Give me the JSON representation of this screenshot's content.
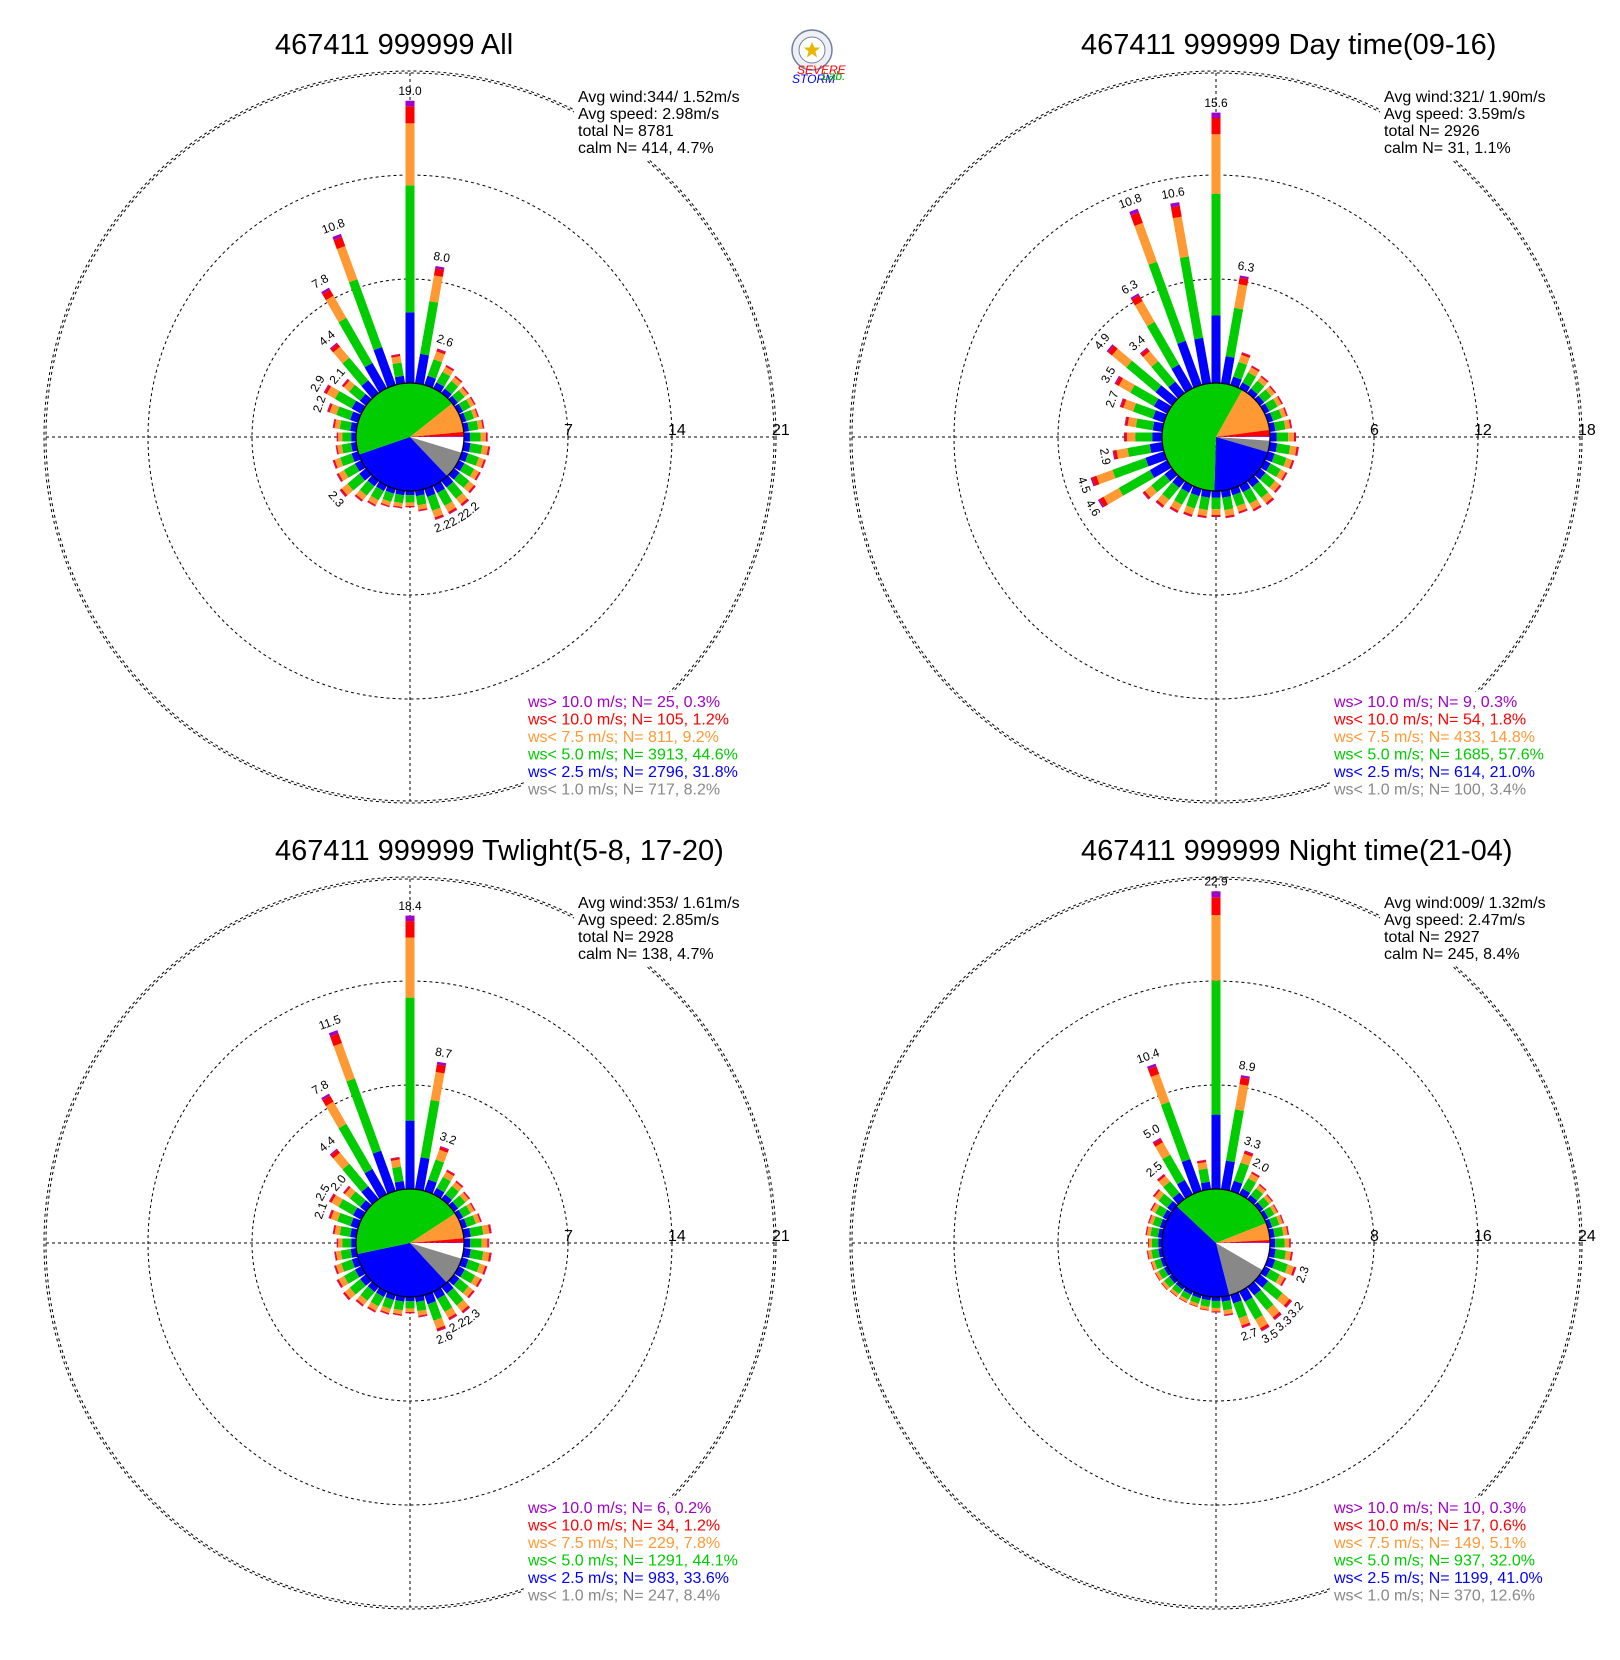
{
  "logo": {
    "word1": "SEVERE",
    "word2": "STORM",
    "word3": "Lab.",
    "colors": [
      "#ff0000",
      "#0000ff",
      "#00aa00"
    ]
  },
  "colors": {
    "gt10": "#a000c8",
    "lt10": "#ff0000",
    "lt7_5": "#ff9933",
    "lt5": "#00cc00",
    "lt2_5": "#0000ff",
    "lt1": "#888888",
    "calm": "#ffffff"
  },
  "chart_data": [
    {
      "type": "windrose",
      "title": "467411 999999 All",
      "rings": [
        7,
        14,
        21
      ],
      "stats": [
        "Avg wind:344/ 1.52m/s",
        "Avg speed: 2.98m/s",
        "total N=        8781",
        "calm N=    414,   4.7%"
      ],
      "legend": [
        {
          "label": "ws> 10.0 m/s; N=    25,  0.3%",
          "color": "#a000c8"
        },
        {
          "label": "ws< 10.0 m/s; N=   105,  1.2%",
          "color": "#ff0000"
        },
        {
          "label": "ws<  7.5 m/s; N=   811,  9.2%",
          "color": "#ff9933"
        },
        {
          "label": "ws<  5.0 m/s; N=  3913, 44.6%",
          "color": "#00cc00"
        },
        {
          "label": "ws<  2.5 m/s; N=  2796, 31.8%",
          "color": "#0000ff"
        },
        {
          "label": "ws<  1.0 m/s; N=   717,  8.2%",
          "color": "#888888"
        }
      ],
      "pie": [
        4.7,
        8.2,
        31.8,
        44.6,
        9.2,
        1.2,
        0.3
      ],
      "directions": [
        {
          "dir": 0,
          "value": 19.0,
          "label": "19.0"
        },
        {
          "dir": 10,
          "value": 8.0,
          "label": "8.0"
        },
        {
          "dir": 20,
          "value": 2.6,
          "label": "2.6"
        },
        {
          "dir": 30,
          "value": 1.8
        },
        {
          "dir": 40,
          "value": 1.5
        },
        {
          "dir": 50,
          "value": 1.3
        },
        {
          "dir": 60,
          "value": 1.3
        },
        {
          "dir": 70,
          "value": 1.2
        },
        {
          "dir": 80,
          "value": 1.4
        },
        {
          "dir": 90,
          "value": 1.6
        },
        {
          "dir": 100,
          "value": 1.8
        },
        {
          "dir": 110,
          "value": 1.7
        },
        {
          "dir": 120,
          "value": 1.7
        },
        {
          "dir": 130,
          "value": 1.9
        },
        {
          "dir": 140,
          "value": 2.2,
          "label": "2.2"
        },
        {
          "dir": 150,
          "value": 2.2,
          "label": "2.2"
        },
        {
          "dir": 160,
          "value": 2.2,
          "label": "2.2"
        },
        {
          "dir": 170,
          "value": 1.4
        },
        {
          "dir": 180,
          "value": 1.1
        },
        {
          "dir": 190,
          "value": 1.2
        },
        {
          "dir": 200,
          "value": 1.3
        },
        {
          "dir": 210,
          "value": 1.6
        },
        {
          "dir": 220,
          "value": 1.8
        },
        {
          "dir": 230,
          "value": 2.3,
          "label": "2.3"
        },
        {
          "dir": 240,
          "value": 1.9
        },
        {
          "dir": 250,
          "value": 1.8
        },
        {
          "dir": 260,
          "value": 1.4
        },
        {
          "dir": 270,
          "value": 1.3
        },
        {
          "dir": 280,
          "value": 1.6
        },
        {
          "dir": 290,
          "value": 2.2,
          "label": "2.2"
        },
        {
          "dir": 300,
          "value": 2.9,
          "label": "2.9"
        },
        {
          "dir": 310,
          "value": 2.1,
          "label": "2.1"
        },
        {
          "dir": 320,
          "value": 4.4,
          "label": "4.4"
        },
        {
          "dir": 330,
          "value": 7.8,
          "label": "7.8"
        },
        {
          "dir": 340,
          "value": 10.8,
          "label": "10.8"
        },
        {
          "dir": 350,
          "value": 2.0
        }
      ]
    },
    {
      "type": "windrose",
      "title": "467411 999999 Day time(09-16)",
      "rings": [
        6,
        12,
        18
      ],
      "stats": [
        "Avg wind:321/ 1.90m/s",
        "Avg speed: 3.59m/s",
        "total N=        2926",
        "calm N=     31,   1.1%"
      ],
      "legend": [
        {
          "label": "ws> 10.0 m/s; N=     9,  0.3%",
          "color": "#a000c8"
        },
        {
          "label": "ws< 10.0 m/s; N=    54,  1.8%",
          "color": "#ff0000"
        },
        {
          "label": "ws<  7.5 m/s; N=   433, 14.8%",
          "color": "#ff9933"
        },
        {
          "label": "ws<  5.0 m/s; N=  1685, 57.6%",
          "color": "#00cc00"
        },
        {
          "label": "ws<  2.5 m/s; N=   614, 21.0%",
          "color": "#0000ff"
        },
        {
          "label": "ws<  1.0 m/s; N=   100,  3.4%",
          "color": "#888888"
        }
      ],
      "pie": [
        1.1,
        3.4,
        21.0,
        57.6,
        14.8,
        1.8,
        0.3
      ],
      "directions": [
        {
          "dir": 0,
          "value": 15.6,
          "label": "15.6"
        },
        {
          "dir": 10,
          "value": 6.3,
          "label": "6.3"
        },
        {
          "dir": 20,
          "value": 2.0
        },
        {
          "dir": 30,
          "value": 1.5
        },
        {
          "dir": 40,
          "value": 1.3
        },
        {
          "dir": 50,
          "value": 1.2
        },
        {
          "dir": 60,
          "value": 1.2
        },
        {
          "dir": 70,
          "value": 1.2
        },
        {
          "dir": 80,
          "value": 1.3
        },
        {
          "dir": 90,
          "value": 1.5
        },
        {
          "dir": 100,
          "value": 1.7
        },
        {
          "dir": 110,
          "value": 1.6
        },
        {
          "dir": 120,
          "value": 1.5
        },
        {
          "dir": 130,
          "value": 1.6
        },
        {
          "dir": 140,
          "value": 1.8
        },
        {
          "dir": 150,
          "value": 1.7
        },
        {
          "dir": 160,
          "value": 1.5
        },
        {
          "dir": 170,
          "value": 1.6
        },
        {
          "dir": 180,
          "value": 1.5
        },
        {
          "dir": 190,
          "value": 1.6
        },
        {
          "dir": 200,
          "value": 1.7
        },
        {
          "dir": 210,
          "value": 1.8
        },
        {
          "dir": 220,
          "value": 2.0
        },
        {
          "dir": 230,
          "value": 2.2
        },
        {
          "dir": 240,
          "value": 4.6,
          "label": "4.6"
        },
        {
          "dir": 250,
          "value": 4.5,
          "label": "4.5"
        },
        {
          "dir": 260,
          "value": 2.9,
          "label": "2.9"
        },
        {
          "dir": 270,
          "value": 2.2
        },
        {
          "dir": 280,
          "value": 2.2
        },
        {
          "dir": 290,
          "value": 2.7,
          "label": "2.7"
        },
        {
          "dir": 300,
          "value": 3.5,
          "label": "3.5"
        },
        {
          "dir": 310,
          "value": 4.9,
          "label": "4.9"
        },
        {
          "dir": 320,
          "value": 3.4,
          "label": "3.4"
        },
        {
          "dir": 330,
          "value": 6.3,
          "label": "6.3"
        },
        {
          "dir": 340,
          "value": 10.8,
          "label": "10.8"
        },
        {
          "dir": 350,
          "value": 10.6,
          "label": "10.6"
        }
      ]
    },
    {
      "type": "windrose",
      "title": "467411 999999 Twlight(5-8, 17-20)",
      "rings": [
        7,
        14,
        21
      ],
      "stats": [
        "Avg wind:353/ 1.61m/s",
        "Avg speed: 2.85m/s",
        "total N=        2928",
        "calm N=    138,   4.7%"
      ],
      "legend": [
        {
          "label": "ws> 10.0 m/s; N=     6,  0.2%",
          "color": "#a000c8"
        },
        {
          "label": "ws< 10.0 m/s; N=    34,  1.2%",
          "color": "#ff0000"
        },
        {
          "label": "ws<  7.5 m/s; N=   229,  7.8%",
          "color": "#ff9933"
        },
        {
          "label": "ws<  5.0 m/s; N=  1291, 44.1%",
          "color": "#00cc00"
        },
        {
          "label": "ws<  2.5 m/s; N=   983, 33.6%",
          "color": "#0000ff"
        },
        {
          "label": "ws<  1.0 m/s; N=   247,  8.4%",
          "color": "#888888"
        }
      ],
      "pie": [
        4.7,
        8.4,
        33.6,
        44.1,
        7.8,
        1.2,
        0.2
      ],
      "directions": [
        {
          "dir": 0,
          "value": 18.4,
          "label": "18.4"
        },
        {
          "dir": 10,
          "value": 8.7,
          "label": "8.7"
        },
        {
          "dir": 20,
          "value": 3.2,
          "label": "3.2"
        },
        {
          "dir": 30,
          "value": 1.9
        },
        {
          "dir": 40,
          "value": 1.6
        },
        {
          "dir": 50,
          "value": 1.4
        },
        {
          "dir": 60,
          "value": 1.3
        },
        {
          "dir": 70,
          "value": 1.4
        },
        {
          "dir": 80,
          "value": 1.9
        },
        {
          "dir": 90,
          "value": 1.7
        },
        {
          "dir": 100,
          "value": 1.9
        },
        {
          "dir": 110,
          "value": 1.8
        },
        {
          "dir": 120,
          "value": 1.8
        },
        {
          "dir": 130,
          "value": 1.8
        },
        {
          "dir": 140,
          "value": 2.3,
          "label": "2.3"
        },
        {
          "dir": 150,
          "value": 2.2,
          "label": "2.2"
        },
        {
          "dir": 160,
          "value": 2.6,
          "label": "2.6"
        },
        {
          "dir": 170,
          "value": 1.4
        },
        {
          "dir": 180,
          "value": 1.1
        },
        {
          "dir": 190,
          "value": 1.3
        },
        {
          "dir": 200,
          "value": 1.4
        },
        {
          "dir": 210,
          "value": 1.6
        },
        {
          "dir": 220,
          "value": 1.7
        },
        {
          "dir": 230,
          "value": 2.0
        },
        {
          "dir": 240,
          "value": 1.9
        },
        {
          "dir": 250,
          "value": 1.7
        },
        {
          "dir": 260,
          "value": 1.5
        },
        {
          "dir": 270,
          "value": 1.3
        },
        {
          "dir": 280,
          "value": 1.6
        },
        {
          "dir": 290,
          "value": 2.1,
          "label": "2.1"
        },
        {
          "dir": 300,
          "value": 2.5,
          "label": "2.5"
        },
        {
          "dir": 310,
          "value": 2.0,
          "label": "2.0"
        },
        {
          "dir": 320,
          "value": 4.4,
          "label": "4.4"
        },
        {
          "dir": 330,
          "value": 7.8,
          "label": "7.8"
        },
        {
          "dir": 340,
          "value": 11.5,
          "label": "11.5"
        },
        {
          "dir": 350,
          "value": 2.2
        }
      ]
    },
    {
      "type": "windrose",
      "title": "467411 999999 Night time(21-04)",
      "rings": [
        8,
        16,
        24
      ],
      "stats": [
        "Avg wind:009/ 1.32m/s",
        "Avg speed: 2.47m/s",
        "total N=        2927",
        "calm N=    245,   8.4%"
      ],
      "legend": [
        {
          "label": "ws> 10.0 m/s; N=    10,  0.3%",
          "color": "#a000c8"
        },
        {
          "label": "ws< 10.0 m/s; N=    17,  0.6%",
          "color": "#ff0000"
        },
        {
          "label": "ws<  7.5 m/s; N=   149,  5.1%",
          "color": "#ff9933"
        },
        {
          "label": "ws<  5.0 m/s; N=   937, 32.0%",
          "color": "#00cc00"
        },
        {
          "label": "ws<  2.5 m/s; N=  1199, 41.0%",
          "color": "#0000ff"
        },
        {
          "label": "ws<  1.0 m/s; N=   370, 12.6%",
          "color": "#888888"
        }
      ],
      "pie": [
        8.4,
        12.6,
        41.0,
        32.0,
        5.1,
        0.6,
        0.3
      ],
      "directions": [
        {
          "dir": 0,
          "value": 22.9,
          "label": "22.9"
        },
        {
          "dir": 10,
          "value": 8.9,
          "label": "8.9"
        },
        {
          "dir": 20,
          "value": 3.3,
          "label": "3.3"
        },
        {
          "dir": 30,
          "value": 2.0,
          "label": "2.0"
        },
        {
          "dir": 40,
          "value": 1.5
        },
        {
          "dir": 50,
          "value": 1.3
        },
        {
          "dir": 60,
          "value": 1.2
        },
        {
          "dir": 70,
          "value": 1.3
        },
        {
          "dir": 80,
          "value": 1.5
        },
        {
          "dir": 90,
          "value": 1.6
        },
        {
          "dir": 100,
          "value": 1.8
        },
        {
          "dir": 110,
          "value": 2.3,
          "label": "2.3"
        },
        {
          "dir": 120,
          "value": 1.9
        },
        {
          "dir": 130,
          "value": 3.2,
          "label": "3.2"
        },
        {
          "dir": 140,
          "value": 3.3,
          "label": "3.3"
        },
        {
          "dir": 150,
          "value": 3.5,
          "label": "3.5"
        },
        {
          "dir": 160,
          "value": 2.7,
          "label": "2.7"
        },
        {
          "dir": 170,
          "value": 1.5
        },
        {
          "dir": 180,
          "value": 1.2
        },
        {
          "dir": 190,
          "value": 1.1
        },
        {
          "dir": 200,
          "value": 1.0
        },
        {
          "dir": 210,
          "value": 1.0
        },
        {
          "dir": 220,
          "value": 1.0
        },
        {
          "dir": 230,
          "value": 1.1
        },
        {
          "dir": 240,
          "value": 1.1
        },
        {
          "dir": 250,
          "value": 1.1
        },
        {
          "dir": 260,
          "value": 1.2
        },
        {
          "dir": 270,
          "value": 1.1
        },
        {
          "dir": 280,
          "value": 1.3
        },
        {
          "dir": 290,
          "value": 1.3
        },
        {
          "dir": 300,
          "value": 1.5
        },
        {
          "dir": 310,
          "value": 1.9
        },
        {
          "dir": 320,
          "value": 2.5,
          "label": "2.5"
        },
        {
          "dir": 330,
          "value": 5.0,
          "label": "5.0"
        },
        {
          "dir": 340,
          "value": 10.4,
          "label": "10.4"
        },
        {
          "dir": 350,
          "value": 2.3
        }
      ]
    }
  ]
}
